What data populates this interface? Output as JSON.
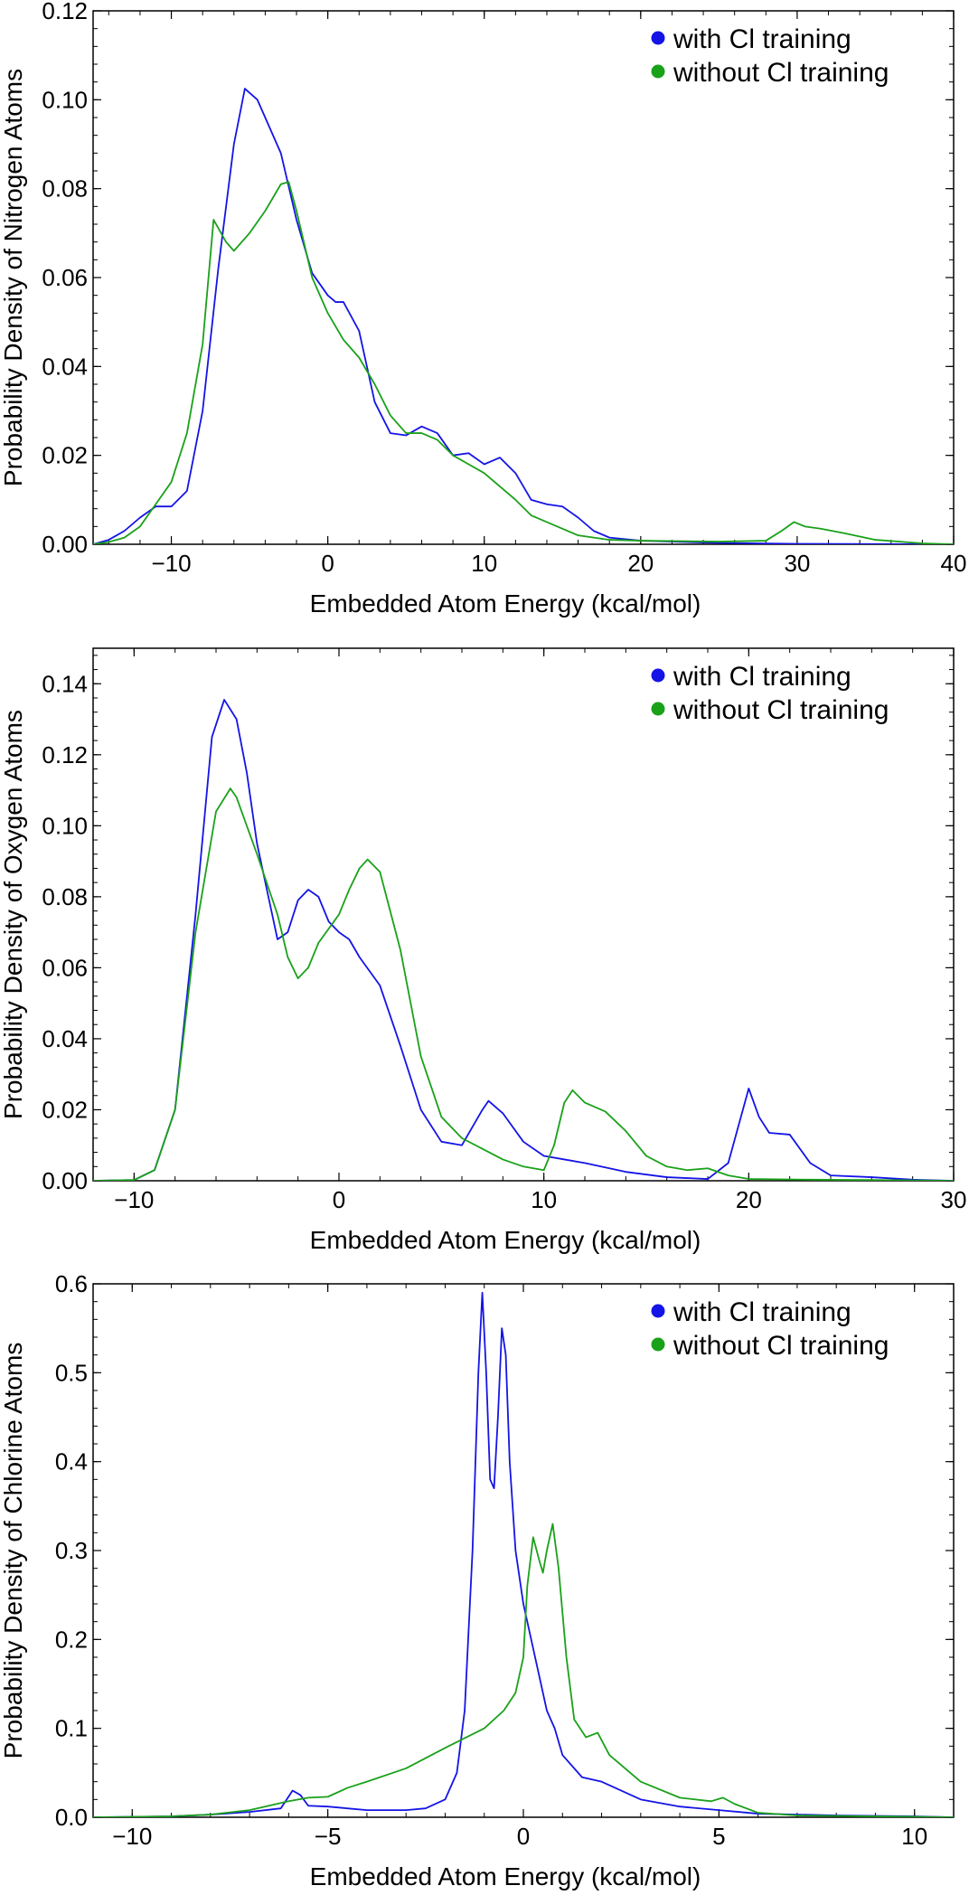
{
  "chart_data": [
    {
      "type": "line",
      "xlabel": "Embedded Atom Energy (kcal/mol)",
      "ylabel": "Probability Density of Nitrogen Atoms",
      "xlim": [
        -15,
        40
      ],
      "ylim": [
        0,
        0.12
      ],
      "xticks": [
        -10,
        0,
        10,
        20,
        30,
        40
      ],
      "xtick_labels": [
        "−10",
        "0",
        "10",
        "20",
        "30",
        "40"
      ],
      "yticks": [
        0,
        0.02,
        0.04,
        0.06,
        0.08,
        0.1,
        0.12
      ],
      "ytick_labels": [
        "0.00",
        "0.02",
        "0.04",
        "0.06",
        "0.08",
        "0.10",
        "0.12"
      ],
      "legend_position": "top-right",
      "series": [
        {
          "name": "with Cl training",
          "color": "#1414e6",
          "points": [
            [
              -15,
              0
            ],
            [
              -14,
              0.001
            ],
            [
              -13,
              0.003
            ],
            [
              -12,
              0.006
            ],
            [
              -11,
              0.0085
            ],
            [
              -10,
              0.0085
            ],
            [
              -9,
              0.012
            ],
            [
              -8,
              0.03
            ],
            [
              -7,
              0.062
            ],
            [
              -6,
              0.09
            ],
            [
              -5.3,
              0.1025
            ],
            [
              -4.5,
              0.1
            ],
            [
              -4,
              0.096
            ],
            [
              -3,
              0.088
            ],
            [
              -2,
              0.073
            ],
            [
              -1,
              0.061
            ],
            [
              0,
              0.056
            ],
            [
              0.5,
              0.0545
            ],
            [
              1,
              0.0545
            ],
            [
              2,
              0.048
            ],
            [
              3,
              0.032
            ],
            [
              4,
              0.025
            ],
            [
              5,
              0.0245
            ],
            [
              6,
              0.0265
            ],
            [
              7,
              0.025
            ],
            [
              8,
              0.02
            ],
            [
              9,
              0.0205
            ],
            [
              10,
              0.018
            ],
            [
              11,
              0.0195
            ],
            [
              12,
              0.016
            ],
            [
              13,
              0.01
            ],
            [
              14,
              0.009
            ],
            [
              15,
              0.0085
            ],
            [
              16,
              0.006
            ],
            [
              17,
              0.003
            ],
            [
              18,
              0.0015
            ],
            [
              20,
              0.0008
            ],
            [
              25,
              0.0003
            ],
            [
              30,
              0.0001
            ],
            [
              40,
              0
            ]
          ]
        },
        {
          "name": "without Cl training",
          "color": "#1aa11a",
          "points": [
            [
              -15,
              0
            ],
            [
              -14,
              0.0005
            ],
            [
              -13,
              0.0015
            ],
            [
              -12,
              0.004
            ],
            [
              -11,
              0.009
            ],
            [
              -10,
              0.014
            ],
            [
              -9,
              0.025
            ],
            [
              -8,
              0.045
            ],
            [
              -7.3,
              0.073
            ],
            [
              -6.5,
              0.068
            ],
            [
              -6,
              0.066
            ],
            [
              -5,
              0.07
            ],
            [
              -4,
              0.075
            ],
            [
              -3,
              0.081
            ],
            [
              -2.5,
              0.0815
            ],
            [
              -2,
              0.075
            ],
            [
              -1,
              0.06
            ],
            [
              0,
              0.052
            ],
            [
              1,
              0.046
            ],
            [
              2,
              0.042
            ],
            [
              3,
              0.036
            ],
            [
              4,
              0.029
            ],
            [
              5,
              0.025
            ],
            [
              6,
              0.025
            ],
            [
              7,
              0.0235
            ],
            [
              8,
              0.02
            ],
            [
              9,
              0.018
            ],
            [
              10,
              0.016
            ],
            [
              11,
              0.013
            ],
            [
              12,
              0.01
            ],
            [
              13,
              0.0065
            ],
            [
              14,
              0.005
            ],
            [
              15,
              0.0035
            ],
            [
              16,
              0.002
            ],
            [
              18,
              0.001
            ],
            [
              20,
              0.0008
            ],
            [
              25,
              0.0006
            ],
            [
              28,
              0.0008
            ],
            [
              29,
              0.003
            ],
            [
              29.8,
              0.005
            ],
            [
              30.5,
              0.004
            ],
            [
              31.5,
              0.0035
            ],
            [
              33,
              0.0025
            ],
            [
              35,
              0.001
            ],
            [
              38,
              0.0002
            ],
            [
              40,
              0
            ]
          ]
        }
      ]
    },
    {
      "type": "line",
      "xlabel": "Embedded Atom Energy (kcal/mol)",
      "ylabel": "Probability Density of Oxygen Atoms",
      "xlim": [
        -12,
        30
      ],
      "ylim": [
        0,
        0.15
      ],
      "xticks": [
        -10,
        0,
        10,
        20,
        30
      ],
      "xtick_labels": [
        "−10",
        "0",
        "10",
        "20",
        "30"
      ],
      "yticks": [
        0,
        0.02,
        0.04,
        0.06,
        0.08,
        0.1,
        0.12,
        0.14
      ],
      "ytick_labels": [
        "0.00",
        "0.02",
        "0.04",
        "0.06",
        "0.08",
        "0.10",
        "0.12",
        "0.14"
      ],
      "legend_position": "top-right",
      "series": [
        {
          "name": "with Cl training",
          "color": "#1414e6",
          "points": [
            [
              -12,
              0
            ],
            [
              -10,
              0.0002
            ],
            [
              -9,
              0.003
            ],
            [
              -8,
              0.02
            ],
            [
              -7,
              0.075
            ],
            [
              -6.2,
              0.125
            ],
            [
              -5.6,
              0.1355
            ],
            [
              -5,
              0.13
            ],
            [
              -4.5,
              0.115
            ],
            [
              -4,
              0.095
            ],
            [
              -3,
              0.068
            ],
            [
              -2.5,
              0.07
            ],
            [
              -2,
              0.079
            ],
            [
              -1.5,
              0.082
            ],
            [
              -1,
              0.08
            ],
            [
              -0.5,
              0.073
            ],
            [
              0,
              0.07
            ],
            [
              0.5,
              0.068
            ],
            [
              1,
              0.063
            ],
            [
              2,
              0.055
            ],
            [
              3,
              0.038
            ],
            [
              4,
              0.02
            ],
            [
              5,
              0.011
            ],
            [
              6,
              0.01
            ],
            [
              7,
              0.02
            ],
            [
              7.3,
              0.0225
            ],
            [
              8,
              0.019
            ],
            [
              9,
              0.011
            ],
            [
              10,
              0.007
            ],
            [
              11,
              0.006
            ],
            [
              12,
              0.005
            ],
            [
              14,
              0.0025
            ],
            [
              16,
              0.001
            ],
            [
              18,
              0.0005
            ],
            [
              19,
              0.005
            ],
            [
              20,
              0.026
            ],
            [
              20.5,
              0.018
            ],
            [
              21,
              0.0135
            ],
            [
              22,
              0.013
            ],
            [
              23,
              0.005
            ],
            [
              24,
              0.0015
            ],
            [
              26,
              0.001
            ],
            [
              28,
              0.0003
            ],
            [
              30,
              0
            ]
          ]
        },
        {
          "name": "without Cl training",
          "color": "#1aa11a",
          "points": [
            [
              -12,
              0
            ],
            [
              -10,
              0.0002
            ],
            [
              -9,
              0.003
            ],
            [
              -8,
              0.02
            ],
            [
              -7,
              0.07
            ],
            [
              -6,
              0.104
            ],
            [
              -5.3,
              0.1105
            ],
            [
              -5,
              0.108
            ],
            [
              -4,
              0.092
            ],
            [
              -3,
              0.075
            ],
            [
              -2.5,
              0.063
            ],
            [
              -2,
              0.057
            ],
            [
              -1.5,
              0.06
            ],
            [
              -1,
              0.067
            ],
            [
              0,
              0.075
            ],
            [
              0.5,
              0.082
            ],
            [
              1,
              0.088
            ],
            [
              1.4,
              0.0905
            ],
            [
              2,
              0.087
            ],
            [
              3,
              0.065
            ],
            [
              4,
              0.035
            ],
            [
              5,
              0.018
            ],
            [
              6,
              0.012
            ],
            [
              7,
              0.009
            ],
            [
              8,
              0.006
            ],
            [
              9,
              0.004
            ],
            [
              10,
              0.003
            ],
            [
              10.5,
              0.01
            ],
            [
              11,
              0.022
            ],
            [
              11.4,
              0.0255
            ],
            [
              12,
              0.022
            ],
            [
              13,
              0.0195
            ],
            [
              14,
              0.014
            ],
            [
              15,
              0.007
            ],
            [
              16,
              0.004
            ],
            [
              17,
              0.003
            ],
            [
              18,
              0.0035
            ],
            [
              19,
              0.0015
            ],
            [
              20,
              0.0005
            ],
            [
              23,
              0.0003
            ],
            [
              26,
              0.0002
            ],
            [
              30,
              0
            ]
          ]
        }
      ]
    },
    {
      "type": "line",
      "xlabel": "Embedded Atom Energy (kcal/mol)",
      "ylabel": "Probability Density of Chlorine Atoms",
      "xlim": [
        -11,
        11
      ],
      "ylim": [
        0,
        0.6
      ],
      "xticks": [
        -10,
        -5,
        0,
        5,
        10
      ],
      "xtick_labels": [
        "−10",
        "−5",
        "0",
        "5",
        "10"
      ],
      "yticks": [
        0,
        0.1,
        0.2,
        0.3,
        0.4,
        0.5,
        0.6
      ],
      "ytick_labels": [
        "0.0",
        "0.1",
        "0.2",
        "0.3",
        "0.4",
        "0.5",
        "0.6"
      ],
      "legend_position": "top-right",
      "series": [
        {
          "name": "with Cl training",
          "color": "#1414e6",
          "points": [
            [
              -11,
              0
            ],
            [
              -9,
              0.001
            ],
            [
              -8,
              0.003
            ],
            [
              -7,
              0.006
            ],
            [
              -6.2,
              0.01
            ],
            [
              -5.9,
              0.03
            ],
            [
              -5.7,
              0.025
            ],
            [
              -5.5,
              0.013
            ],
            [
              -5,
              0.012
            ],
            [
              -4.5,
              0.01
            ],
            [
              -4,
              0.008
            ],
            [
              -3,
              0.008
            ],
            [
              -2.5,
              0.01
            ],
            [
              -2,
              0.02
            ],
            [
              -1.7,
              0.05
            ],
            [
              -1.5,
              0.12
            ],
            [
              -1.3,
              0.3
            ],
            [
              -1.15,
              0.5
            ],
            [
              -1.05,
              0.59
            ],
            [
              -0.95,
              0.5
            ],
            [
              -0.85,
              0.38
            ],
            [
              -0.75,
              0.37
            ],
            [
              -0.65,
              0.45
            ],
            [
              -0.55,
              0.55
            ],
            [
              -0.45,
              0.52
            ],
            [
              -0.35,
              0.4
            ],
            [
              -0.2,
              0.3
            ],
            [
              0,
              0.24
            ],
            [
              0.2,
              0.2
            ],
            [
              0.4,
              0.16
            ],
            [
              0.6,
              0.12
            ],
            [
              0.8,
              0.1
            ],
            [
              1,
              0.07
            ],
            [
              1.5,
              0.045
            ],
            [
              2,
              0.04
            ],
            [
              3,
              0.02
            ],
            [
              4,
              0.012
            ],
            [
              5,
              0.008
            ],
            [
              6,
              0.004
            ],
            [
              8,
              0.002
            ],
            [
              10,
              0.001
            ],
            [
              11,
              0
            ]
          ]
        },
        {
          "name": "without Cl training",
          "color": "#1aa11a",
          "points": [
            [
              -11,
              0
            ],
            [
              -9,
              0.001
            ],
            [
              -8,
              0.003
            ],
            [
              -7,
              0.008
            ],
            [
              -6,
              0.018
            ],
            [
              -5.5,
              0.022
            ],
            [
              -5,
              0.023
            ],
            [
              -4.5,
              0.033
            ],
            [
              -4,
              0.04
            ],
            [
              -3,
              0.055
            ],
            [
              -2,
              0.078
            ],
            [
              -1,
              0.1
            ],
            [
              -0.5,
              0.12
            ],
            [
              -0.2,
              0.14
            ],
            [
              0,
              0.18
            ],
            [
              0.1,
              0.26
            ],
            [
              0.25,
              0.315
            ],
            [
              0.4,
              0.29
            ],
            [
              0.5,
              0.275
            ],
            [
              0.6,
              0.3
            ],
            [
              0.75,
              0.33
            ],
            [
              0.9,
              0.28
            ],
            [
              1.1,
              0.18
            ],
            [
              1.3,
              0.11
            ],
            [
              1.6,
              0.09
            ],
            [
              1.9,
              0.095
            ],
            [
              2.2,
              0.07
            ],
            [
              3,
              0.04
            ],
            [
              4,
              0.022
            ],
            [
              4.8,
              0.018
            ],
            [
              5.1,
              0.022
            ],
            [
              5.4,
              0.015
            ],
            [
              6,
              0.005
            ],
            [
              7,
              0.002
            ],
            [
              9,
              0.001
            ],
            [
              11,
              0
            ]
          ]
        }
      ]
    }
  ]
}
